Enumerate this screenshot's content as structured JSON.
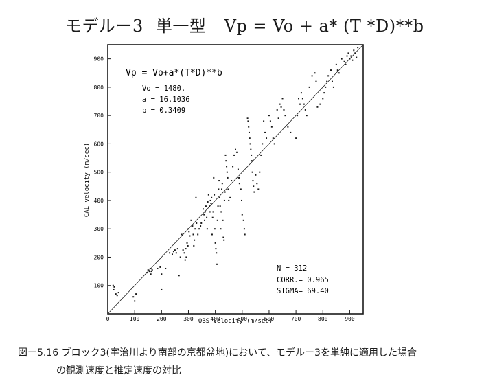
{
  "figure_title": {
    "model": "モデルー3",
    "model_type": "単一型",
    "formula": "Vp = Vo + a* (T *D)**b"
  },
  "caption": {
    "line1": "図ー5.16  ブロック3(宇治川より南部の京都盆地)において、モデルー3を単純に適用した場合",
    "line2": "の観測速度と推定速度の対比"
  },
  "chart_data": {
    "type": "scatter",
    "title": "Vp = Vo+a*(T*D)**b",
    "xlabel": "OBS velocity (m/sec)",
    "ylabel": "CAL velocity (m/sec)",
    "xlim": [
      0,
      950
    ],
    "ylim": [
      0,
      950
    ],
    "xticks": [
      0,
      100,
      200,
      300,
      400,
      500,
      600,
      700,
      800,
      900
    ],
    "yticks": [
      100,
      200,
      300,
      400,
      500,
      600,
      700,
      800,
      900
    ],
    "params": [
      "Vo = 1480.",
      "a = 16.1036",
      "b = 0.3409"
    ],
    "stats": [
      "N     = 312",
      "CORR.= 0.965",
      "SIGMA= 69.40"
    ],
    "reference_line": "y = x",
    "grid": false,
    "points": [
      [
        20,
        100
      ],
      [
        22,
        85
      ],
      [
        24,
        95
      ],
      [
        30,
        70
      ],
      [
        35,
        65
      ],
      [
        40,
        75
      ],
      [
        95,
        60
      ],
      [
        100,
        45
      ],
      [
        105,
        70
      ],
      [
        145,
        145
      ],
      [
        150,
        155
      ],
      [
        155,
        150
      ],
      [
        158,
        160
      ],
      [
        160,
        140
      ],
      [
        162,
        150
      ],
      [
        165,
        155
      ],
      [
        185,
        160
      ],
      [
        195,
        165
      ],
      [
        200,
        85
      ],
      [
        200,
        140
      ],
      [
        215,
        160
      ],
      [
        230,
        215
      ],
      [
        240,
        210
      ],
      [
        245,
        220
      ],
      [
        250,
        225
      ],
      [
        255,
        215
      ],
      [
        260,
        230
      ],
      [
        265,
        135
      ],
      [
        270,
        200
      ],
      [
        275,
        280
      ],
      [
        280,
        225
      ],
      [
        285,
        215
      ],
      [
        288,
        190
      ],
      [
        290,
        230
      ],
      [
        292,
        200
      ],
      [
        295,
        250
      ],
      [
        298,
        240
      ],
      [
        300,
        300
      ],
      [
        302,
        290
      ],
      [
        305,
        275
      ],
      [
        310,
        330
      ],
      [
        315,
        310
      ],
      [
        318,
        280
      ],
      [
        320,
        240
      ],
      [
        322,
        260
      ],
      [
        325,
        300
      ],
      [
        328,
        410
      ],
      [
        330,
        320
      ],
      [
        335,
        280
      ],
      [
        340,
        300
      ],
      [
        345,
        310
      ],
      [
        348,
        320
      ],
      [
        355,
        370
      ],
      [
        358,
        350
      ],
      [
        360,
        330
      ],
      [
        362,
        360
      ],
      [
        365,
        380
      ],
      [
        368,
        340
      ],
      [
        370,
        300
      ],
      [
        372,
        395
      ],
      [
        375,
        420
      ],
      [
        378,
        380
      ],
      [
        380,
        360
      ],
      [
        382,
        400
      ],
      [
        384,
        390
      ],
      [
        386,
        410
      ],
      [
        388,
        280
      ],
      [
        390,
        340
      ],
      [
        392,
        360
      ],
      [
        394,
        480
      ],
      [
        396,
        420
      ],
      [
        398,
        300
      ],
      [
        400,
        250
      ],
      [
        402,
        230
      ],
      [
        404,
        215
      ],
      [
        406,
        175
      ],
      [
        408,
        330
      ],
      [
        410,
        380
      ],
      [
        412,
        440
      ],
      [
        414,
        470
      ],
      [
        416,
        410
      ],
      [
        418,
        380
      ],
      [
        420,
        300
      ],
      [
        422,
        360
      ],
      [
        424,
        440
      ],
      [
        426,
        460
      ],
      [
        428,
        330
      ],
      [
        430,
        270
      ],
      [
        432,
        260
      ],
      [
        434,
        400
      ],
      [
        436,
        430
      ],
      [
        438,
        560
      ],
      [
        440,
        540
      ],
      [
        442,
        520
      ],
      [
        444,
        500
      ],
      [
        446,
        480
      ],
      [
        448,
        440
      ],
      [
        450,
        400
      ],
      [
        455,
        410
      ],
      [
        460,
        470
      ],
      [
        465,
        520
      ],
      [
        470,
        560
      ],
      [
        475,
        580
      ],
      [
        480,
        570
      ],
      [
        485,
        510
      ],
      [
        488,
        480
      ],
      [
        490,
        460
      ],
      [
        495,
        440
      ],
      [
        498,
        400
      ],
      [
        500,
        350
      ],
      [
        505,
        330
      ],
      [
        508,
        300
      ],
      [
        510,
        280
      ],
      [
        520,
        690
      ],
      [
        522,
        680
      ],
      [
        524,
        660
      ],
      [
        526,
        640
      ],
      [
        528,
        620
      ],
      [
        530,
        600
      ],
      [
        532,
        580
      ],
      [
        534,
        560
      ],
      [
        536,
        540
      ],
      [
        538,
        500
      ],
      [
        540,
        470
      ],
      [
        542,
        450
      ],
      [
        545,
        430
      ],
      [
        550,
        490
      ],
      [
        555,
        460
      ],
      [
        560,
        440
      ],
      [
        565,
        500
      ],
      [
        570,
        560
      ],
      [
        575,
        600
      ],
      [
        580,
        680
      ],
      [
        585,
        640
      ],
      [
        590,
        620
      ],
      [
        600,
        700
      ],
      [
        605,
        680
      ],
      [
        610,
        660
      ],
      [
        615,
        620
      ],
      [
        620,
        600
      ],
      [
        630,
        720
      ],
      [
        635,
        690
      ],
      [
        640,
        740
      ],
      [
        645,
        730
      ],
      [
        650,
        760
      ],
      [
        655,
        720
      ],
      [
        660,
        700
      ],
      [
        670,
        660
      ],
      [
        680,
        640
      ],
      [
        700,
        620
      ],
      [
        705,
        700
      ],
      [
        710,
        760
      ],
      [
        715,
        740
      ],
      [
        720,
        780
      ],
      [
        725,
        760
      ],
      [
        730,
        740
      ],
      [
        735,
        720
      ],
      [
        740,
        700
      ],
      [
        750,
        800
      ],
      [
        760,
        840
      ],
      [
        770,
        850
      ],
      [
        775,
        820
      ],
      [
        780,
        730
      ],
      [
        790,
        740
      ],
      [
        800,
        760
      ],
      [
        805,
        780
      ],
      [
        810,
        800
      ],
      [
        815,
        820
      ],
      [
        820,
        840
      ],
      [
        830,
        860
      ],
      [
        835,
        820
      ],
      [
        840,
        800
      ],
      [
        850,
        880
      ],
      [
        855,
        860
      ],
      [
        860,
        850
      ],
      [
        870,
        900
      ],
      [
        880,
        890
      ],
      [
        885,
        880
      ],
      [
        890,
        910
      ],
      [
        895,
        920
      ],
      [
        900,
        900
      ],
      [
        905,
        910
      ],
      [
        910,
        895
      ],
      [
        915,
        930
      ],
      [
        920,
        920
      ],
      [
        925,
        905
      ],
      [
        930,
        940
      ]
    ]
  }
}
